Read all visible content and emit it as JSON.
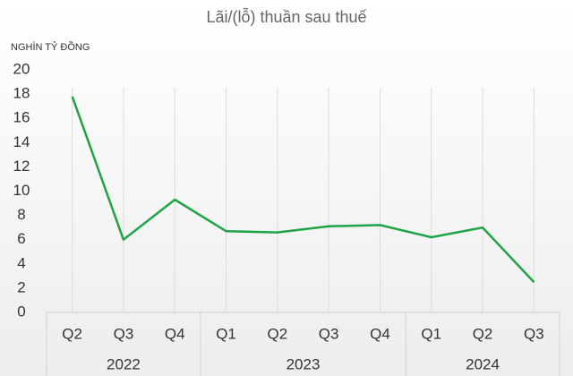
{
  "chart_data": {
    "type": "line",
    "title": "Lãi/(lỗ) thuần sau thuế",
    "y_label": "NGHÌN TỶ ĐỒNG",
    "categories": [
      "Q2",
      "Q3",
      "Q4",
      "Q1",
      "Q2",
      "Q3",
      "Q4",
      "Q1",
      "Q2",
      "Q3"
    ],
    "groups": [
      {
        "name": "2022",
        "size": 3
      },
      {
        "name": "2023",
        "size": 4
      },
      {
        "name": "2024",
        "size": 3
      }
    ],
    "series": [
      {
        "name": "Lãi/(lỗ) thuần sau thuế",
        "color": "#1ea446",
        "values": [
          17.8,
          6.0,
          9.3,
          6.7,
          6.6,
          7.1,
          7.2,
          6.2,
          7.0,
          2.5
        ]
      }
    ],
    "ylim": [
      0,
      20
    ],
    "yticks": [
      0,
      2,
      4,
      6,
      8,
      10,
      12,
      14,
      16,
      18,
      20
    ],
    "grid": true
  }
}
